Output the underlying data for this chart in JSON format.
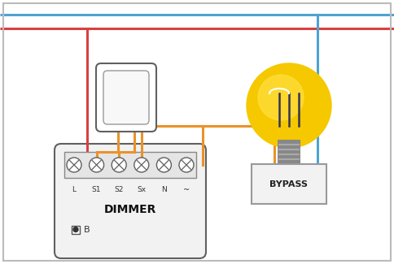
{
  "bg_color": "#ffffff",
  "wire_blue": "#4fa3d1",
  "wire_red": "#d94040",
  "wire_orange": "#e8932a",
  "dimmer_label": "DIMMER",
  "bypass_label": "BYPASS",
  "terminal_labels": [
    "L",
    "S1",
    "S2",
    "Sx",
    "N",
    "~"
  ],
  "lw": 2.2
}
